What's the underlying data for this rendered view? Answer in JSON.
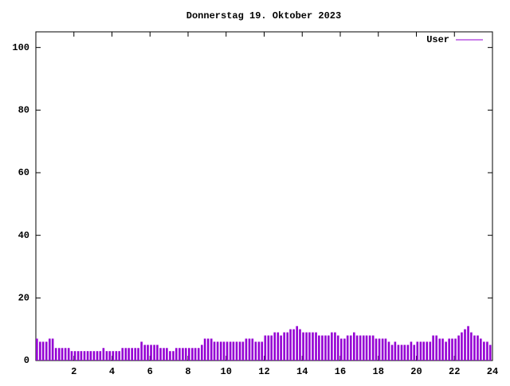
{
  "chart_data": {
    "type": "impulses",
    "title": "Donnerstag 19. Oktober 2023",
    "x": [
      0,
      0.17,
      0.33,
      0.5,
      0.67,
      0.83,
      1,
      1.17,
      1.33,
      1.5,
      1.67,
      1.83,
      2,
      2.17,
      2.33,
      2.5,
      2.67,
      2.83,
      3,
      3.17,
      3.33,
      3.5,
      3.67,
      3.83,
      4,
      4.17,
      4.33,
      4.5,
      4.67,
      4.83,
      5,
      5.17,
      5.33,
      5.5,
      5.67,
      5.83,
      6,
      6.17,
      6.33,
      6.5,
      6.67,
      6.83,
      7,
      7.17,
      7.33,
      7.5,
      7.67,
      7.83,
      8,
      8.17,
      8.33,
      8.5,
      8.67,
      8.83,
      9,
      9.17,
      9.33,
      9.5,
      9.67,
      9.83,
      10,
      10.17,
      10.33,
      10.5,
      10.67,
      10.83,
      11,
      11.17,
      11.33,
      11.5,
      11.67,
      11.83,
      12,
      12.17,
      12.33,
      12.5,
      12.67,
      12.83,
      13,
      13.17,
      13.33,
      13.5,
      13.67,
      13.83,
      14,
      14.17,
      14.33,
      14.5,
      14.67,
      14.83,
      15,
      15.17,
      15.33,
      15.5,
      15.67,
      15.83,
      16,
      16.17,
      16.33,
      16.5,
      16.67,
      16.83,
      17,
      17.17,
      17.33,
      17.5,
      17.67,
      17.83,
      18,
      18.17,
      18.33,
      18.5,
      18.67,
      18.83,
      19,
      19.17,
      19.33,
      19.5,
      19.67,
      19.83,
      20,
      20.17,
      20.33,
      20.5,
      20.67,
      20.83,
      21,
      21.17,
      21.33,
      21.5,
      21.67,
      21.83,
      22,
      22.17,
      22.33,
      22.5,
      22.67,
      22.83,
      23,
      23.17,
      23.33,
      23.5,
      23.67,
      23.83
    ],
    "series": [
      {
        "name": "User",
        "color": "#9400d3",
        "values": [
          7,
          6,
          6,
          6,
          7,
          7,
          4,
          4,
          4,
          4,
          4,
          3,
          3,
          3,
          3,
          3,
          3,
          3,
          3,
          3,
          3,
          4,
          3,
          3,
          3,
          3,
          3,
          4,
          4,
          4,
          4,
          4,
          4,
          6,
          5,
          5,
          5,
          5,
          5,
          4,
          4,
          4,
          3,
          3,
          4,
          4,
          4,
          4,
          4,
          4,
          4,
          4,
          5,
          7,
          7,
          7,
          6,
          6,
          6,
          6,
          6,
          6,
          6,
          6,
          6,
          6,
          7,
          7,
          7,
          6,
          6,
          6,
          8,
          8,
          8,
          9,
          9,
          8,
          9,
          9,
          10,
          10,
          11,
          10,
          9,
          9,
          9,
          9,
          9,
          8,
          8,
          8,
          8,
          9,
          9,
          8,
          7,
          7,
          8,
          8,
          9,
          8,
          8,
          8,
          8,
          8,
          8,
          7,
          7,
          7,
          7,
          6,
          5,
          6,
          5,
          5,
          5,
          5,
          6,
          5,
          6,
          6,
          6,
          6,
          6,
          8,
          8,
          7,
          7,
          6,
          7,
          7,
          7,
          8,
          9,
          10,
          11,
          9,
          8,
          8,
          7,
          6,
          6,
          5
        ]
      }
    ],
    "xlim": [
      0,
      24
    ],
    "xticks": [
      2,
      4,
      6,
      8,
      10,
      12,
      14,
      16,
      18,
      20,
      22,
      24
    ],
    "ylim": [
      0,
      105
    ],
    "yticks": [
      0,
      20,
      40,
      60,
      80,
      100
    ],
    "legend": "top-right"
  }
}
